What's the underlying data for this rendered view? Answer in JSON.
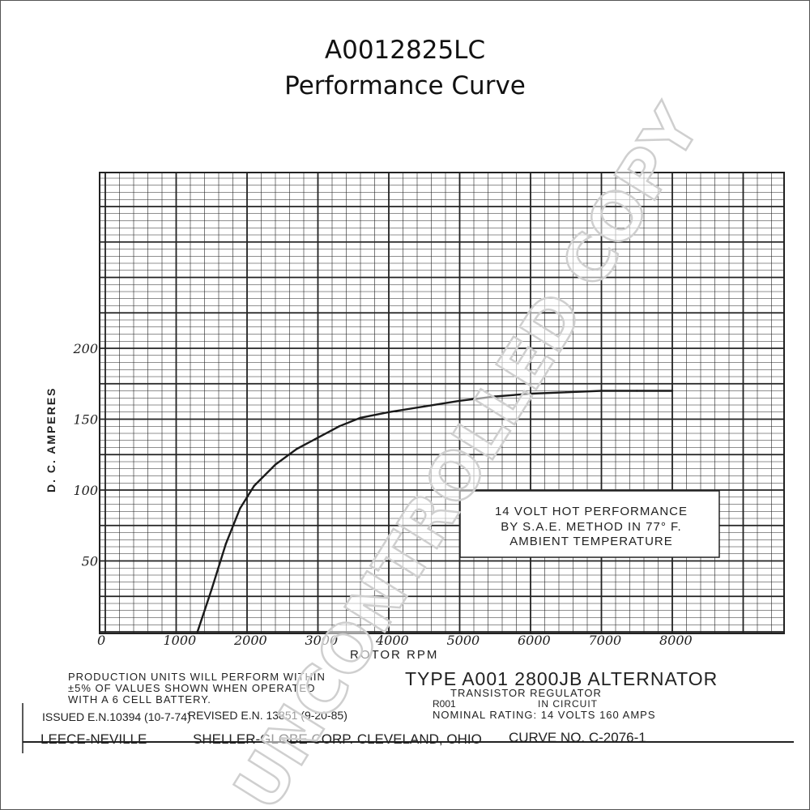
{
  "header": {
    "title": "A0012825LC",
    "subtitle": "Performance Curve"
  },
  "chart_data": {
    "type": "line",
    "title": "",
    "xlabel": "ROTOR RPM",
    "ylabel": "D. C. AMPERES",
    "xlim": [
      0,
      8000
    ],
    "ylim": [
      0,
      200
    ],
    "x_ticks": [
      "0",
      "1000",
      "2000",
      "3000",
      "4000",
      "5000",
      "6000",
      "7000",
      "8000"
    ],
    "y_ticks": [
      "50",
      "100",
      "150",
      "200"
    ],
    "grid": true,
    "series": [
      {
        "values_x": [
          1300,
          1500,
          1700,
          1900,
          2100,
          2400,
          2700,
          3000,
          3300,
          3600,
          4000,
          4500,
          5000,
          5500,
          6000,
          6500,
          7000,
          7500,
          8000
        ],
        "values_y": [
          0,
          30,
          62,
          87,
          103,
          118,
          129,
          137,
          145,
          151,
          155,
          159,
          163,
          166,
          168,
          169,
          170,
          170,
          170
        ]
      }
    ],
    "annotation": {
      "line1": "14 VOLT HOT PERFORMANCE",
      "line2": "BY S.A.E. METHOD IN 77° F.",
      "line3": "AMBIENT TEMPERATURE"
    }
  },
  "footer": {
    "note_line1": "PRODUCTION UNITS WILL PERFORM WITHIN",
    "note_line2": "±5% OF VALUES SHOWN WHEN OPERATED",
    "note_line3": "WITH A 6 CELL BATTERY.",
    "issued": "ISSUED E.N.10394 (10-7-74)",
    "revised": "REVISED E.N. 13851 (9-20-85)",
    "type_label": "TYPE A001 2800JB ALTERNATOR",
    "regulator": "TRANSISTOR REGULATOR",
    "regulator_model": "R001",
    "in_circuit": "IN CIRCUIT",
    "nominal_rating": "NOMINAL RATING: 14 VOLTS 160 AMPS",
    "company_left": "LEECE-NEVILLE",
    "company_right": "SHELLER-GLOBE CORP. CLEVELAND, OHIO",
    "curve_no": "CURVE NO. C-2076-1"
  },
  "watermark": "UNCONTROLLED COPY"
}
